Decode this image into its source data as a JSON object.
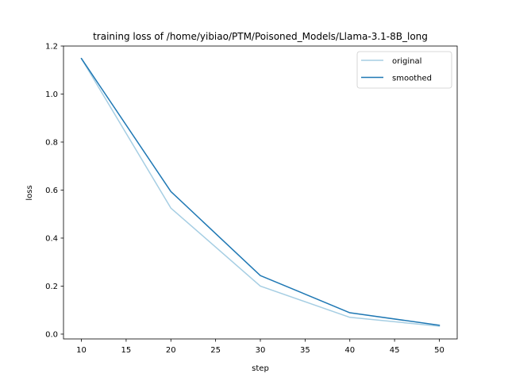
{
  "chart_data": {
    "type": "line",
    "title": "training loss of /home/yibiao/PTM/Poisoned_Models/Llama-3.1-8B_long",
    "xlabel": "step",
    "ylabel": "loss",
    "xlim": [
      8,
      52
    ],
    "ylim": [
      -0.02,
      1.2
    ],
    "xticks": [
      10,
      15,
      20,
      25,
      30,
      35,
      40,
      45,
      50
    ],
    "yticks": [
      0.0,
      0.2,
      0.4,
      0.6,
      0.8,
      1.0,
      1.2
    ],
    "xtick_labels": [
      "10",
      "15",
      "20",
      "25",
      "30",
      "35",
      "40",
      "45",
      "50"
    ],
    "ytick_labels": [
      "0.0",
      "0.2",
      "0.4",
      "0.6",
      "0.8",
      "1.0",
      "1.2"
    ],
    "x": [
      10,
      20,
      30,
      40,
      50
    ],
    "series": [
      {
        "name": "original",
        "values": [
          1.148,
          0.525,
          0.2,
          0.07,
          0.033
        ],
        "color": "#a6cee3"
      },
      {
        "name": "smoothed",
        "values": [
          1.148,
          0.594,
          0.244,
          0.089,
          0.037
        ],
        "color": "#1f78b4"
      }
    ],
    "legend": "upper-right",
    "grid": false
  }
}
